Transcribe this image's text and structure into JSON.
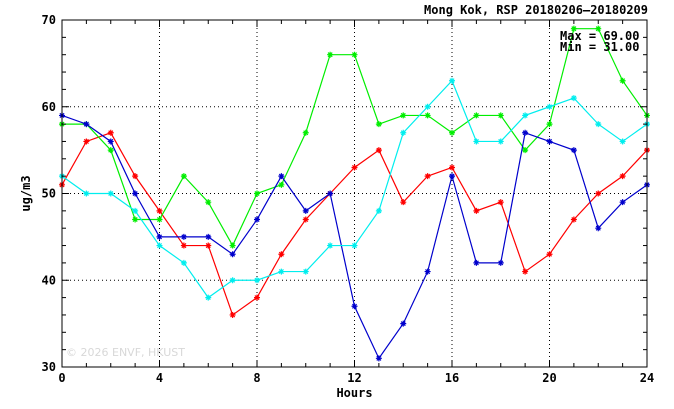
{
  "chart_data": {
    "type": "line",
    "title": "Mong Kok, RSP 20180206–20180209",
    "xlabel": "Hours",
    "ylabel": "ug/m3",
    "xlim": [
      0,
      24
    ],
    "ylim": [
      30,
      70
    ],
    "x_ticks": [
      0,
      4,
      8,
      12,
      16,
      20,
      24
    ],
    "y_ticks": [
      30,
      40,
      50,
      60,
      70
    ],
    "grid": true,
    "annotations": {
      "max": "Max = 69.00",
      "min": "Min = 31.00"
    },
    "watermark": "© 2026  ENVF, HKUST",
    "x": [
      0,
      1,
      2,
      3,
      4,
      5,
      6,
      7,
      8,
      9,
      10,
      11,
      12,
      13,
      14,
      15,
      16,
      17,
      18,
      19,
      20,
      21,
      22,
      23,
      24
    ],
    "series": [
      {
        "color": "#ff0000",
        "values": [
          51,
          56,
          57,
          52,
          48,
          44,
          44,
          36,
          38,
          43,
          47,
          50,
          53,
          55,
          49,
          52,
          53,
          48,
          49,
          41,
          43,
          47,
          50,
          52,
          55
        ]
      },
      {
        "color": "#00ee00",
        "values": [
          58,
          58,
          55,
          47,
          47,
          52,
          49,
          44,
          50,
          51,
          57,
          66,
          66,
          58,
          59,
          59,
          57,
          59,
          59,
          55,
          58,
          69,
          69,
          63,
          59
        ]
      },
      {
        "color": "#0000cc",
        "values": [
          59,
          58,
          56,
          50,
          45,
          45,
          45,
          43,
          47,
          52,
          48,
          50,
          37,
          31,
          35,
          41,
          52,
          42,
          42,
          57,
          56,
          55,
          46,
          49,
          51
        ]
      },
      {
        "color": "#00eeee",
        "values": [
          52,
          50,
          50,
          48,
          44,
          42,
          38,
          40,
          40,
          41,
          41,
          44,
          44,
          48,
          57,
          60,
          63,
          56,
          56,
          59,
          60,
          61,
          58,
          56,
          58
        ]
      }
    ]
  }
}
